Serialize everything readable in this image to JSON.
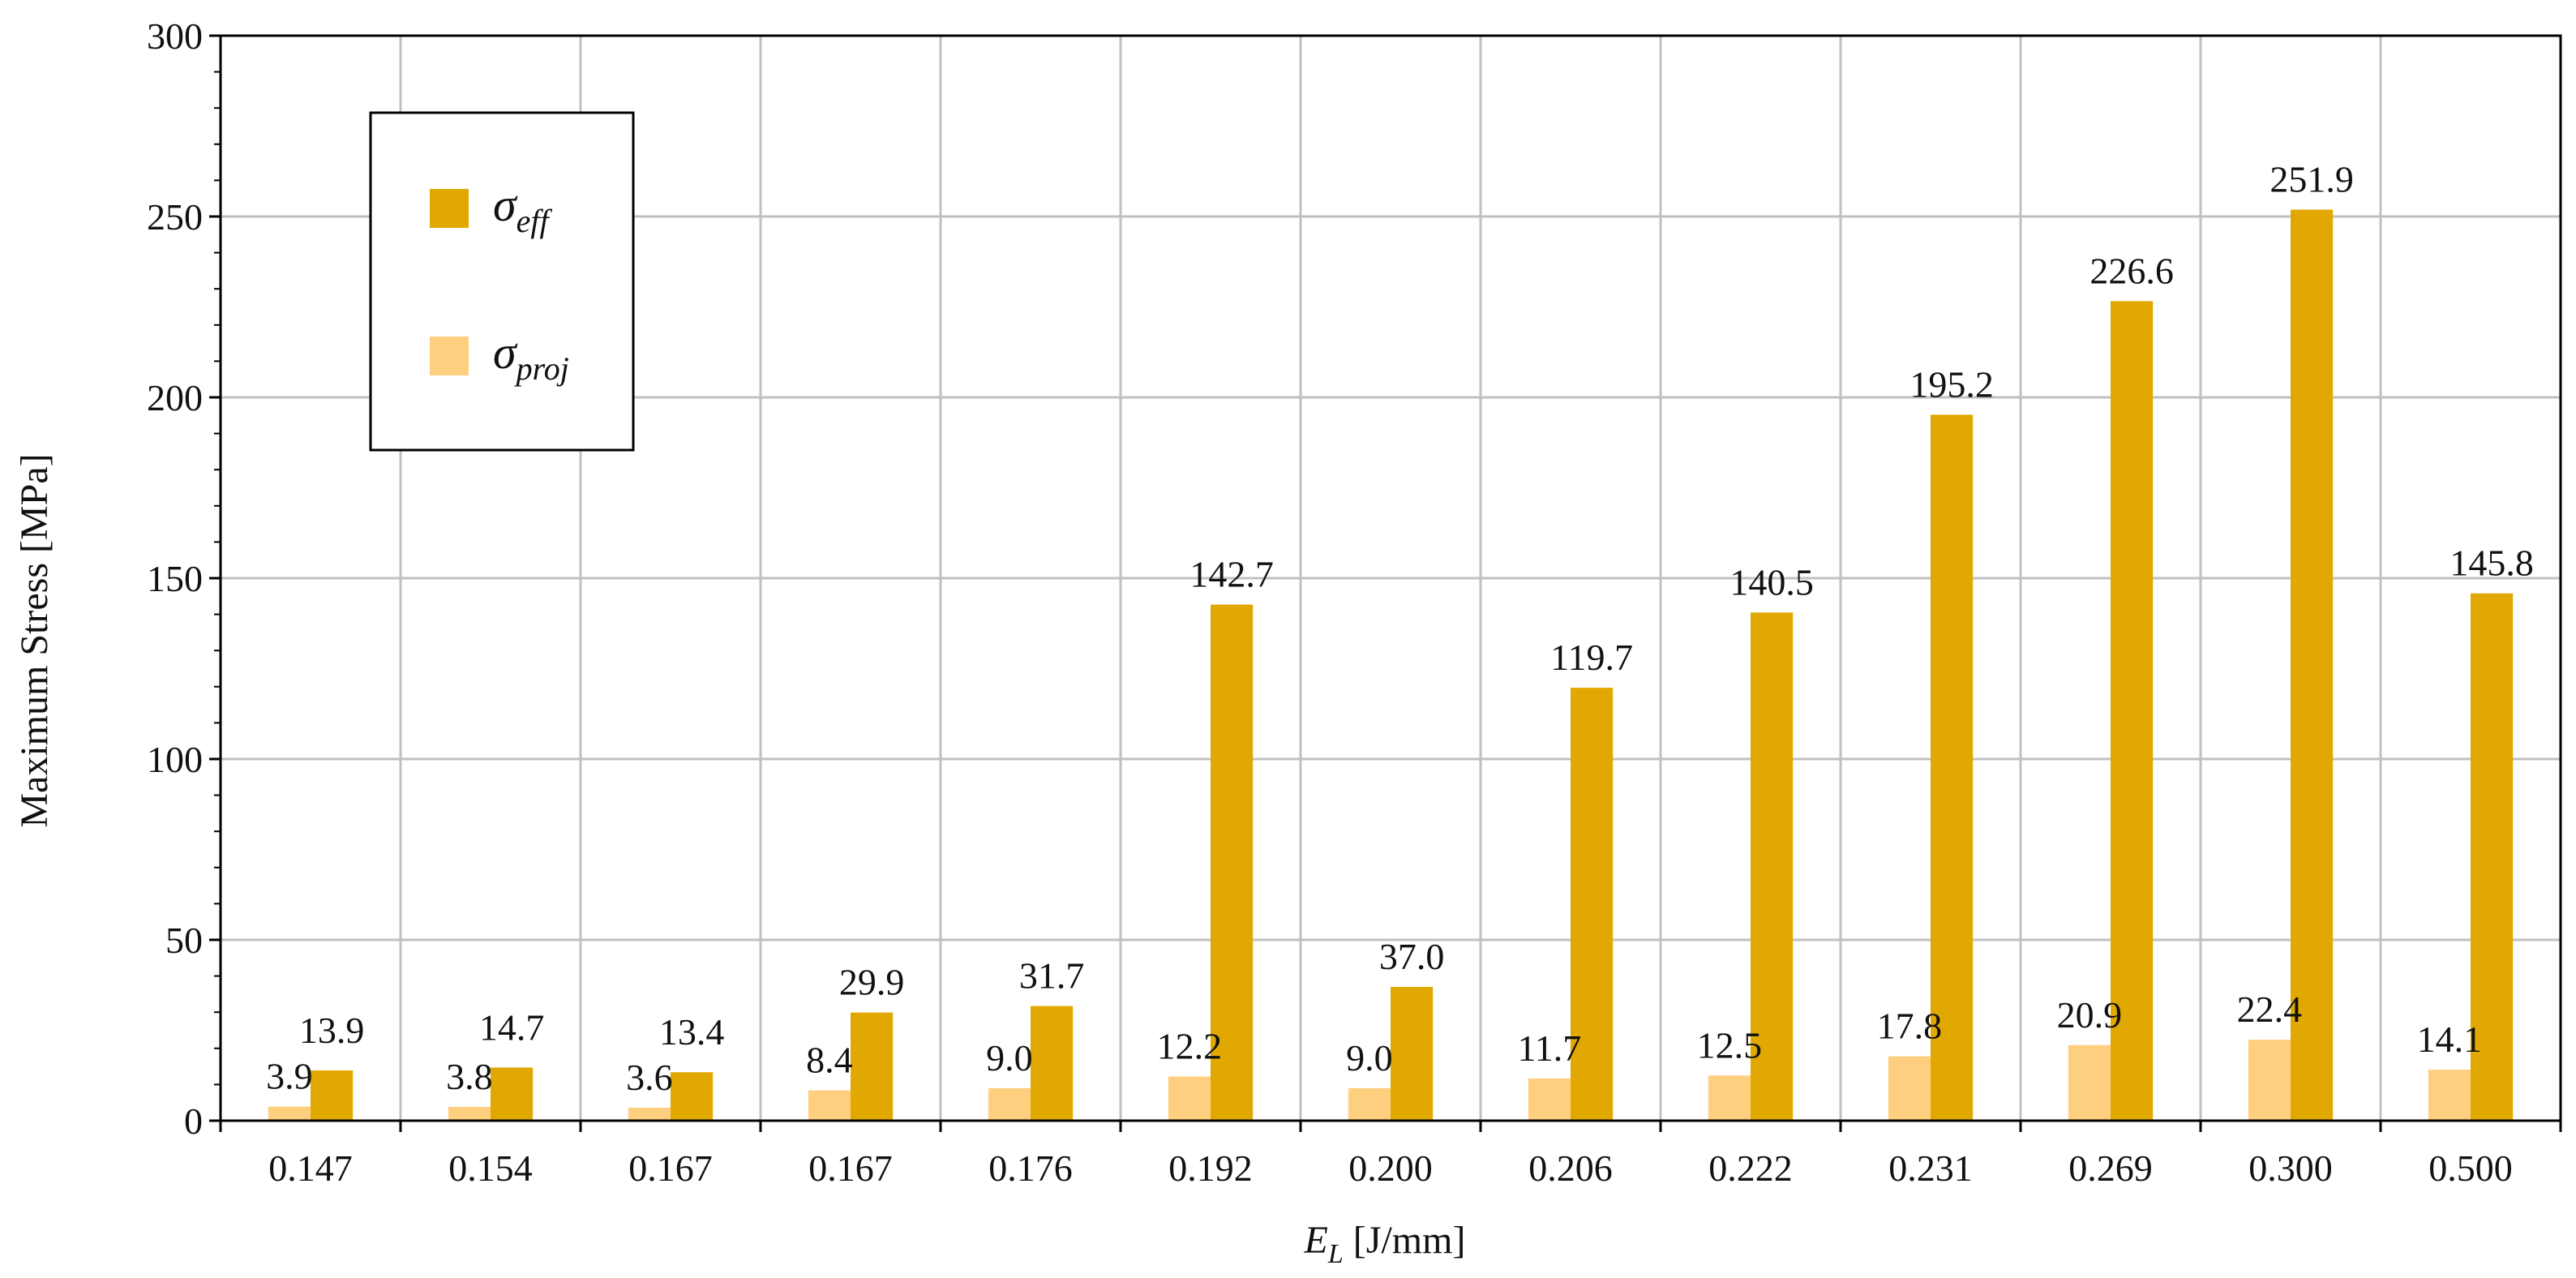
{
  "colors": {
    "sigma_eff": "#E0A800",
    "sigma_proj": "#FFCF80",
    "grid": "#C0C0C0",
    "axis": "#000000"
  },
  "chart_data": {
    "type": "bar",
    "xlabel": {
      "symbol": "E",
      "sub": "L",
      "unit": " [J/mm]"
    },
    "ylabel": "Maximum Stress [MPa]",
    "ylim": [
      0,
      300
    ],
    "yticks": [
      "0",
      "50",
      "100",
      "150",
      "200",
      "250",
      "300"
    ],
    "categories": [
      "0.147",
      "0.154",
      "0.167",
      "0.167",
      "0.176",
      "0.192",
      "0.200",
      "0.206",
      "0.222",
      "0.231",
      "0.269",
      "0.300",
      "0.500"
    ],
    "grid": true,
    "legend_position": "top-left",
    "series": [
      {
        "key": "sigma_proj",
        "name": {
          "symbol": "σ",
          "sub": "proj"
        },
        "values": [
          3.9,
          3.8,
          3.6,
          8.4,
          9.0,
          12.2,
          9.0,
          11.7,
          12.5,
          17.8,
          20.9,
          22.4,
          14.1
        ],
        "labels": [
          "3.9",
          "3.8",
          "3.6",
          "8.4",
          "9.0",
          "12.2",
          "9.0",
          "11.7",
          "12.5",
          "17.8",
          "20.9",
          "22.4",
          "14.1"
        ]
      },
      {
        "key": "sigma_eff",
        "name": {
          "symbol": "σ",
          "sub": "eff"
        },
        "values": [
          13.9,
          14.7,
          13.4,
          29.9,
          31.7,
          142.7,
          37.0,
          119.7,
          140.5,
          195.2,
          226.6,
          251.9,
          145.8
        ],
        "labels": [
          "13.9",
          "14.7",
          "13.4",
          "29.9",
          "31.7",
          "142.7",
          "37.0",
          "119.7",
          "140.5",
          "195.2",
          "226.6",
          "251.9",
          "145.8"
        ]
      }
    ]
  }
}
